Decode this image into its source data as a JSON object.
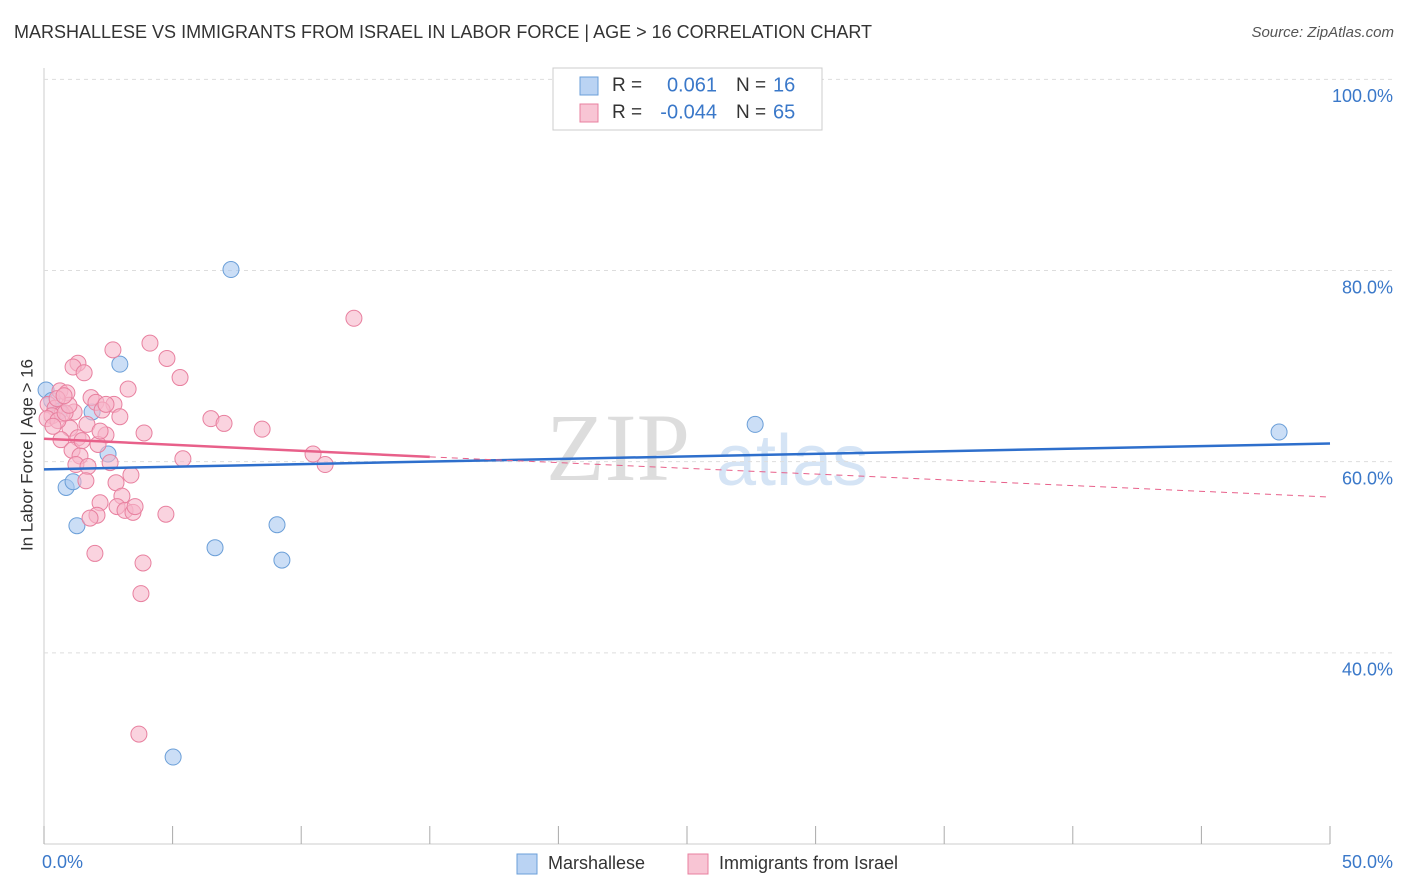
{
  "chart_data": {
    "type": "scatter",
    "title": "MARSHALLESE VS IMMIGRANTS FROM ISRAEL IN LABOR FORCE | AGE > 16 CORRELATION CHART",
    "source": "Source: ZipAtlas.com",
    "y_label": "In Labor Force | Age > 16",
    "watermark": [
      "ZIP",
      "atlas"
    ],
    "xlim": [
      0,
      50
    ],
    "ylim": [
      20,
      101.5
    ],
    "xticks": [
      0,
      5,
      10,
      15,
      20,
      25,
      30,
      35,
      40,
      45,
      50
    ],
    "xtick_labels": [
      {
        "value": 0,
        "label": "0.0%"
      },
      {
        "value": 50,
        "label": "50.0%"
      }
    ],
    "yticks": [
      {
        "value": 40,
        "label": "40.0%"
      },
      {
        "value": 60,
        "label": "60.0%"
      },
      {
        "value": 80,
        "label": "80.0%"
      },
      {
        "value": 100,
        "label": "100.0%"
      }
    ],
    "grid": true,
    "r_label": "R =",
    "n_label": "N =",
    "series": [
      {
        "name": "Marshallese",
        "color": "#a9c8f0",
        "stroke": "#6b9fd8",
        "line_color": "#2e6fcc",
        "r": 0.061,
        "n": 16,
        "x": [
          0.08,
          7.27,
          2.95,
          1.87,
          0.3,
          0.86,
          1.13,
          1.28,
          2.49,
          6.65,
          9.06,
          9.25,
          5.02,
          27.65,
          48.02,
          0.62
        ],
        "values": [
          67.5,
          80.1,
          70.2,
          65.2,
          66.4,
          57.3,
          57.9,
          53.3,
          60.8,
          51.0,
          53.4,
          49.7,
          29.1,
          63.9,
          63.1,
          65.3
        ],
        "trend": {
          "x": [
            0,
            50
          ],
          "y": [
            59.2,
            61.9
          ]
        }
      },
      {
        "name": "Immigrants from Israel",
        "color": "#f6b6c9",
        "stroke": "#e8809f",
        "line_color": "#e8608a",
        "r": -0.044,
        "n": 65,
        "x": [
          12.05,
          4.12,
          2.68,
          4.78,
          1.32,
          1.13,
          1.56,
          5.29,
          3.27,
          0.62,
          0.89,
          1.83,
          2.02,
          2.72,
          0.16,
          0.43,
          2.26,
          1.17,
          0.7,
          0.31,
          0.12,
          6.49,
          7.0,
          1.67,
          1.01,
          8.48,
          3.89,
          2.41,
          1.32,
          0.66,
          2.1,
          1.09,
          10.46,
          1.4,
          5.4,
          2.57,
          1.24,
          1.71,
          10.93,
          3.38,
          1.63,
          2.8,
          3.03,
          2.18,
          2.84,
          3.15,
          3.46,
          4.74,
          2.06,
          1.79,
          1.98,
          3.85,
          3.77,
          3.69,
          0.54,
          0.82,
          0.35,
          2.41,
          0.97,
          2.95,
          2.18,
          0.51,
          0.78,
          1.48,
          3.54
        ],
        "values": [
          75.0,
          72.4,
          71.7,
          70.8,
          70.3,
          69.9,
          69.3,
          68.8,
          67.6,
          67.4,
          67.2,
          66.7,
          66.2,
          66.0,
          66.0,
          65.6,
          65.4,
          65.2,
          65.0,
          64.8,
          64.5,
          64.5,
          64.0,
          63.9,
          63.5,
          63.4,
          63.0,
          62.8,
          62.5,
          62.3,
          61.8,
          61.2,
          60.8,
          60.6,
          60.3,
          59.9,
          59.7,
          59.5,
          59.7,
          58.6,
          58.0,
          57.8,
          56.4,
          55.7,
          55.3,
          54.9,
          54.7,
          54.5,
          54.4,
          54.1,
          50.4,
          49.4,
          46.2,
          31.5,
          64.3,
          65.1,
          63.7,
          66.0,
          65.9,
          64.7,
          63.2,
          66.6,
          66.9,
          62.2,
          55.3
        ],
        "trend": {
          "x": [
            0,
            15,
            50
          ],
          "y": [
            62.4,
            60.5,
            56.3
          ]
        },
        "trend_solid_to": 15
      }
    ]
  }
}
